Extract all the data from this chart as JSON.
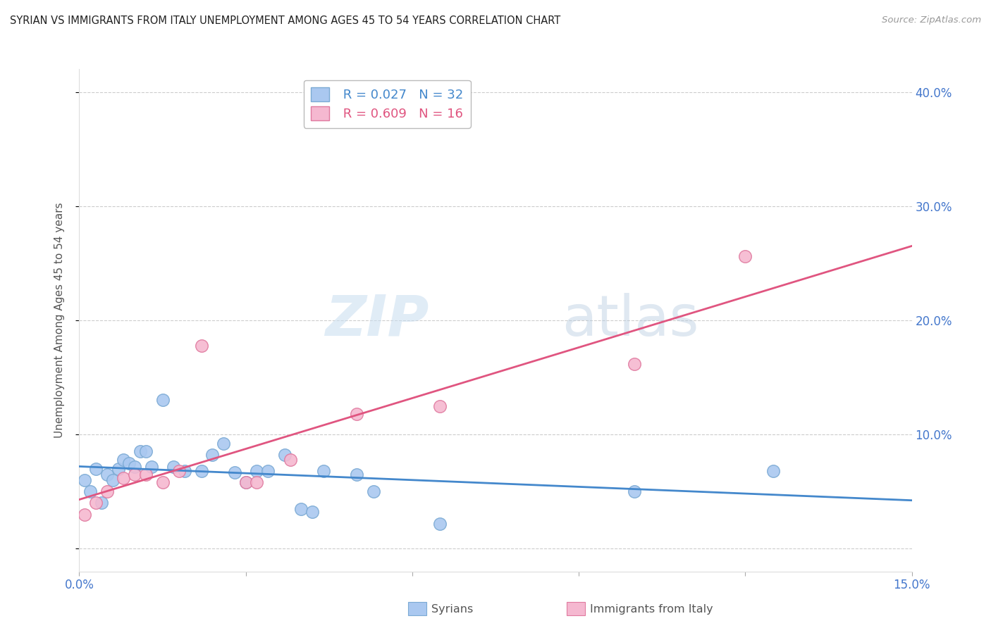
{
  "title": "SYRIAN VS IMMIGRANTS FROM ITALY UNEMPLOYMENT AMONG AGES 45 TO 54 YEARS CORRELATION CHART",
  "source": "Source: ZipAtlas.com",
  "ylabel": "Unemployment Among Ages 45 to 54 years",
  "xlim": [
    0.0,
    0.15
  ],
  "ylim": [
    -0.02,
    0.42
  ],
  "xticks": [
    0.0,
    0.03,
    0.06,
    0.09,
    0.12,
    0.15
  ],
  "xtick_labels": [
    "0.0%",
    "",
    "",
    "",
    "",
    "15.0%"
  ],
  "yticks": [
    0.0,
    0.1,
    0.2,
    0.3,
    0.4
  ],
  "ytick_labels": [
    "",
    "10.0%",
    "20.0%",
    "30.0%",
    "40.0%"
  ],
  "background_color": "#ffffff",
  "grid_color": "#cccccc",
  "syrians_color": "#aac8f0",
  "syrians_edge_color": "#7baad4",
  "italy_color": "#f5b8d0",
  "italy_edge_color": "#e07a9f",
  "regression_syrian_color": "#4488cc",
  "regression_italy_color": "#e05580",
  "title_color": "#333333",
  "axis_label_color": "#555555",
  "tick_color": "#4477cc",
  "R_syrian": 0.027,
  "N_syrian": 32,
  "R_italy": 0.609,
  "N_italy": 16,
  "watermark_zip": "ZIP",
  "watermark_atlas": "atlas",
  "syrians_x": [
    0.001,
    0.002,
    0.003,
    0.004,
    0.005,
    0.006,
    0.007,
    0.008,
    0.009,
    0.01,
    0.011,
    0.012,
    0.013,
    0.015,
    0.017,
    0.019,
    0.022,
    0.024,
    0.026,
    0.028,
    0.03,
    0.032,
    0.034,
    0.037,
    0.04,
    0.042,
    0.044,
    0.05,
    0.053,
    0.065,
    0.1,
    0.125
  ],
  "syrians_y": [
    0.06,
    0.05,
    0.07,
    0.04,
    0.065,
    0.06,
    0.07,
    0.078,
    0.075,
    0.072,
    0.085,
    0.085,
    0.072,
    0.13,
    0.072,
    0.068,
    0.068,
    0.082,
    0.092,
    0.067,
    0.058,
    0.068,
    0.068,
    0.082,
    0.035,
    0.032,
    0.068,
    0.065,
    0.05,
    0.022,
    0.05,
    0.068
  ],
  "italy_x": [
    0.001,
    0.003,
    0.005,
    0.008,
    0.01,
    0.012,
    0.015,
    0.018,
    0.022,
    0.03,
    0.032,
    0.038,
    0.05,
    0.065,
    0.1,
    0.12
  ],
  "italy_y": [
    0.03,
    0.04,
    0.05,
    0.062,
    0.065,
    0.065,
    0.058,
    0.068,
    0.178,
    0.058,
    0.058,
    0.078,
    0.118,
    0.125,
    0.162,
    0.256
  ]
}
